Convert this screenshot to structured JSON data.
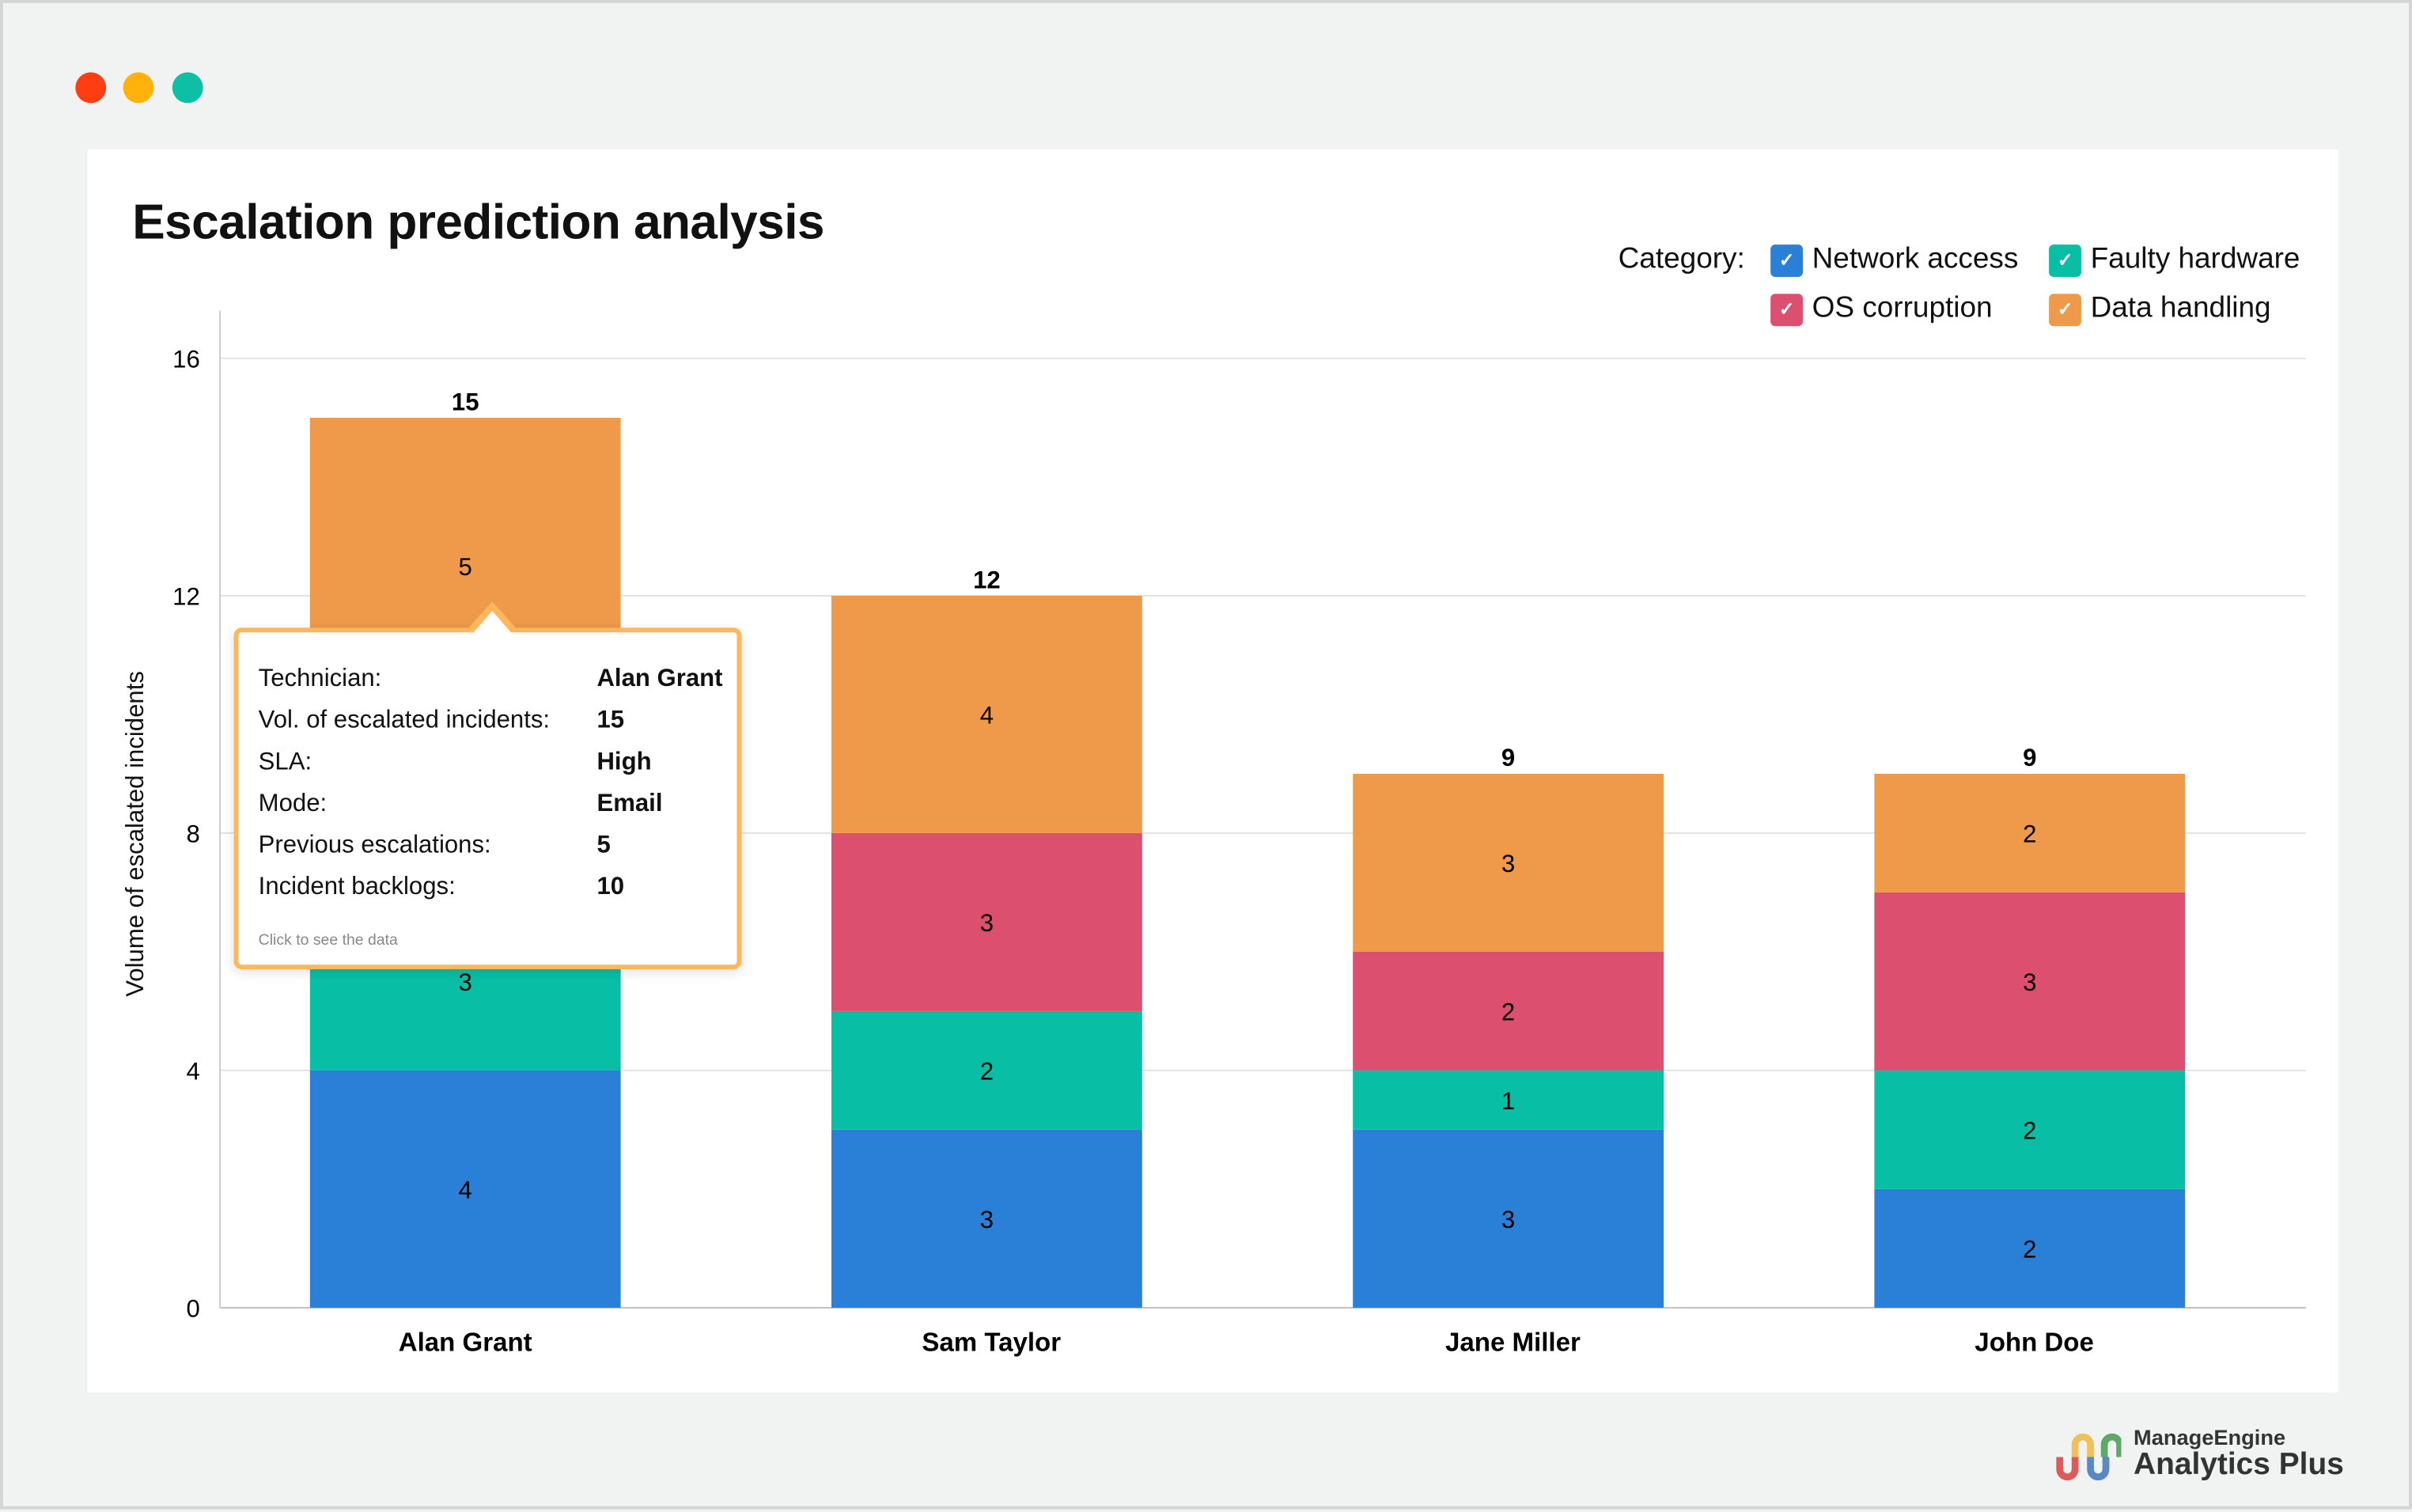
{
  "window": {
    "controls": [
      "close",
      "minimize",
      "maximize"
    ],
    "control_colors": [
      "#fe3e12",
      "#ffb20b",
      "#0cbfa5"
    ]
  },
  "title": "Escalation prediction analysis",
  "legend": {
    "label": "Category:",
    "items": [
      {
        "label": "Network access",
        "color": "#2a7fd6",
        "checked": true
      },
      {
        "label": "Faulty hardware",
        "color": "#08bfa5",
        "checked": true
      },
      {
        "label": "OS corruption",
        "color": "#dc4f6e",
        "checked": true
      },
      {
        "label": "Data handling",
        "color": "#ef9a4a",
        "checked": true
      }
    ]
  },
  "chart_data": {
    "type": "bar",
    "stacked": true,
    "title": "Escalation prediction analysis",
    "xlabel": "",
    "ylabel": "Volume of escalated incidents",
    "ylim": [
      0,
      16
    ],
    "yticks": [
      "0",
      "4",
      "8",
      "12",
      "16"
    ],
    "grid": true,
    "legend_position": "top-right",
    "categories": [
      "Alan Grant",
      "Sam Taylor",
      "Jane Miller",
      "John Doe"
    ],
    "totals": [
      15,
      12,
      9,
      9
    ],
    "series": [
      {
        "name": "Network access",
        "color": "#2a7fd6",
        "values": [
          4,
          3,
          3,
          2
        ]
      },
      {
        "name": "Faulty hardware",
        "color": "#08bfa5",
        "values": [
          3,
          2,
          1,
          2
        ]
      },
      {
        "name": "OS corruption",
        "color": "#dc4f6e",
        "values": [
          3,
          3,
          2,
          3
        ]
      },
      {
        "name": "Data handling",
        "color": "#ef9a4a",
        "values": [
          5,
          4,
          3,
          2
        ]
      }
    ]
  },
  "tooltip": {
    "rows": [
      {
        "label": "Technician:",
        "value": "Alan Grant"
      },
      {
        "label": "Vol. of escalated incidents:",
        "value": "15"
      },
      {
        "label": "SLA:",
        "value": "High"
      },
      {
        "label": "Mode:",
        "value": "Email"
      },
      {
        "label": "Previous escalations:",
        "value": "5"
      },
      {
        "label": "Incident backlogs:",
        "value": "10"
      }
    ],
    "footer": "Click to see the data"
  },
  "logo": {
    "line1": "ManageEngine",
    "line2": "Analytics Plus"
  }
}
